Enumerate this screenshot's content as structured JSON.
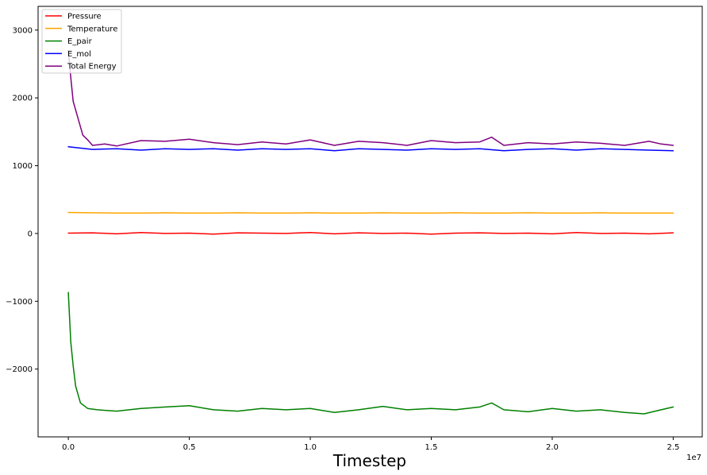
{
  "chart_data": {
    "type": "line",
    "title": "",
    "xlabel": "Timestep",
    "ylabel": "",
    "x_offset_label": "1e7",
    "xlim": [
      -0.125,
      2.62
    ],
    "ylim": [
      -3000,
      3350
    ],
    "x_ticks": [
      0.0,
      0.5,
      1.0,
      1.5,
      2.0,
      2.5
    ],
    "x_tick_labels": [
      "0.0",
      "0.5",
      "1.0",
      "1.5",
      "2.0",
      "2.5"
    ],
    "y_ticks": [
      -2000,
      -1000,
      0,
      1000,
      2000,
      3000
    ],
    "y_tick_labels": [
      "−2000",
      "−1000",
      "0",
      "1000",
      "2000",
      "3000"
    ],
    "grid": false,
    "legend_position": "top-left",
    "series": [
      {
        "name": "Pressure",
        "color": "#ff0000",
        "x": [
          0.0,
          0.1,
          0.2,
          0.3,
          0.4,
          0.5,
          0.6,
          0.7,
          0.8,
          0.9,
          1.0,
          1.1,
          1.2,
          1.3,
          1.4,
          1.5,
          1.6,
          1.7,
          1.8,
          1.9,
          2.0,
          2.1,
          2.2,
          2.3,
          2.4,
          2.5
        ],
        "values": [
          5,
          10,
          -5,
          15,
          0,
          5,
          -10,
          10,
          5,
          0,
          15,
          -5,
          10,
          0,
          5,
          -10,
          5,
          10,
          0,
          5,
          -5,
          15,
          0,
          5,
          -5,
          10
        ]
      },
      {
        "name": "Temperature",
        "color": "#ffa500",
        "x": [
          0.0,
          0.1,
          0.2,
          0.3,
          0.4,
          0.5,
          0.6,
          0.7,
          0.8,
          0.9,
          1.0,
          1.1,
          1.2,
          1.3,
          1.4,
          1.5,
          1.6,
          1.7,
          1.8,
          1.9,
          2.0,
          2.1,
          2.2,
          2.3,
          2.4,
          2.5
        ],
        "values": [
          310,
          305,
          300,
          300,
          305,
          300,
          300,
          305,
          300,
          300,
          305,
          300,
          300,
          305,
          300,
          300,
          305,
          300,
          300,
          305,
          300,
          300,
          305,
          300,
          300,
          300
        ]
      },
      {
        "name": "E_pair",
        "color": "#008000",
        "x": [
          0.0,
          0.01,
          0.02,
          0.03,
          0.05,
          0.08,
          0.12,
          0.2,
          0.3,
          0.4,
          0.5,
          0.6,
          0.7,
          0.8,
          0.9,
          1.0,
          1.1,
          1.2,
          1.3,
          1.4,
          1.5,
          1.6,
          1.7,
          1.75,
          1.8,
          1.9,
          2.0,
          2.1,
          2.2,
          2.3,
          2.38,
          2.45,
          2.5
        ],
        "values": [
          -870,
          -1600,
          -1950,
          -2250,
          -2500,
          -2580,
          -2600,
          -2620,
          -2580,
          -2560,
          -2540,
          -2600,
          -2620,
          -2580,
          -2600,
          -2580,
          -2640,
          -2600,
          -2550,
          -2600,
          -2580,
          -2600,
          -2560,
          -2500,
          -2600,
          -2630,
          -2580,
          -2620,
          -2600,
          -2640,
          -2660,
          -2600,
          -2560
        ]
      },
      {
        "name": "E_mol",
        "color": "#0000ff",
        "x": [
          0.0,
          0.1,
          0.2,
          0.3,
          0.4,
          0.5,
          0.6,
          0.7,
          0.8,
          0.9,
          1.0,
          1.1,
          1.2,
          1.3,
          1.4,
          1.5,
          1.6,
          1.7,
          1.8,
          1.9,
          2.0,
          2.1,
          2.2,
          2.3,
          2.4,
          2.5
        ],
        "values": [
          1280,
          1240,
          1250,
          1230,
          1250,
          1240,
          1250,
          1230,
          1250,
          1240,
          1250,
          1220,
          1250,
          1240,
          1230,
          1250,
          1240,
          1250,
          1220,
          1240,
          1250,
          1230,
          1250,
          1240,
          1230,
          1220
        ]
      },
      {
        "name": "Total Energy",
        "color": "#800080",
        "x": [
          0.0,
          0.01,
          0.02,
          0.04,
          0.06,
          0.08,
          0.1,
          0.15,
          0.2,
          0.3,
          0.4,
          0.5,
          0.6,
          0.7,
          0.8,
          0.9,
          1.0,
          1.1,
          1.2,
          1.3,
          1.4,
          1.5,
          1.6,
          1.7,
          1.75,
          1.8,
          1.9,
          2.0,
          2.1,
          2.2,
          2.3,
          2.4,
          2.45,
          2.5
        ],
        "values": [
          2700,
          2300,
          1950,
          1700,
          1450,
          1380,
          1300,
          1320,
          1290,
          1370,
          1360,
          1390,
          1340,
          1310,
          1350,
          1320,
          1380,
          1300,
          1360,
          1340,
          1300,
          1370,
          1340,
          1350,
          1420,
          1300,
          1340,
          1320,
          1350,
          1330,
          1300,
          1360,
          1320,
          1300
        ]
      }
    ]
  }
}
